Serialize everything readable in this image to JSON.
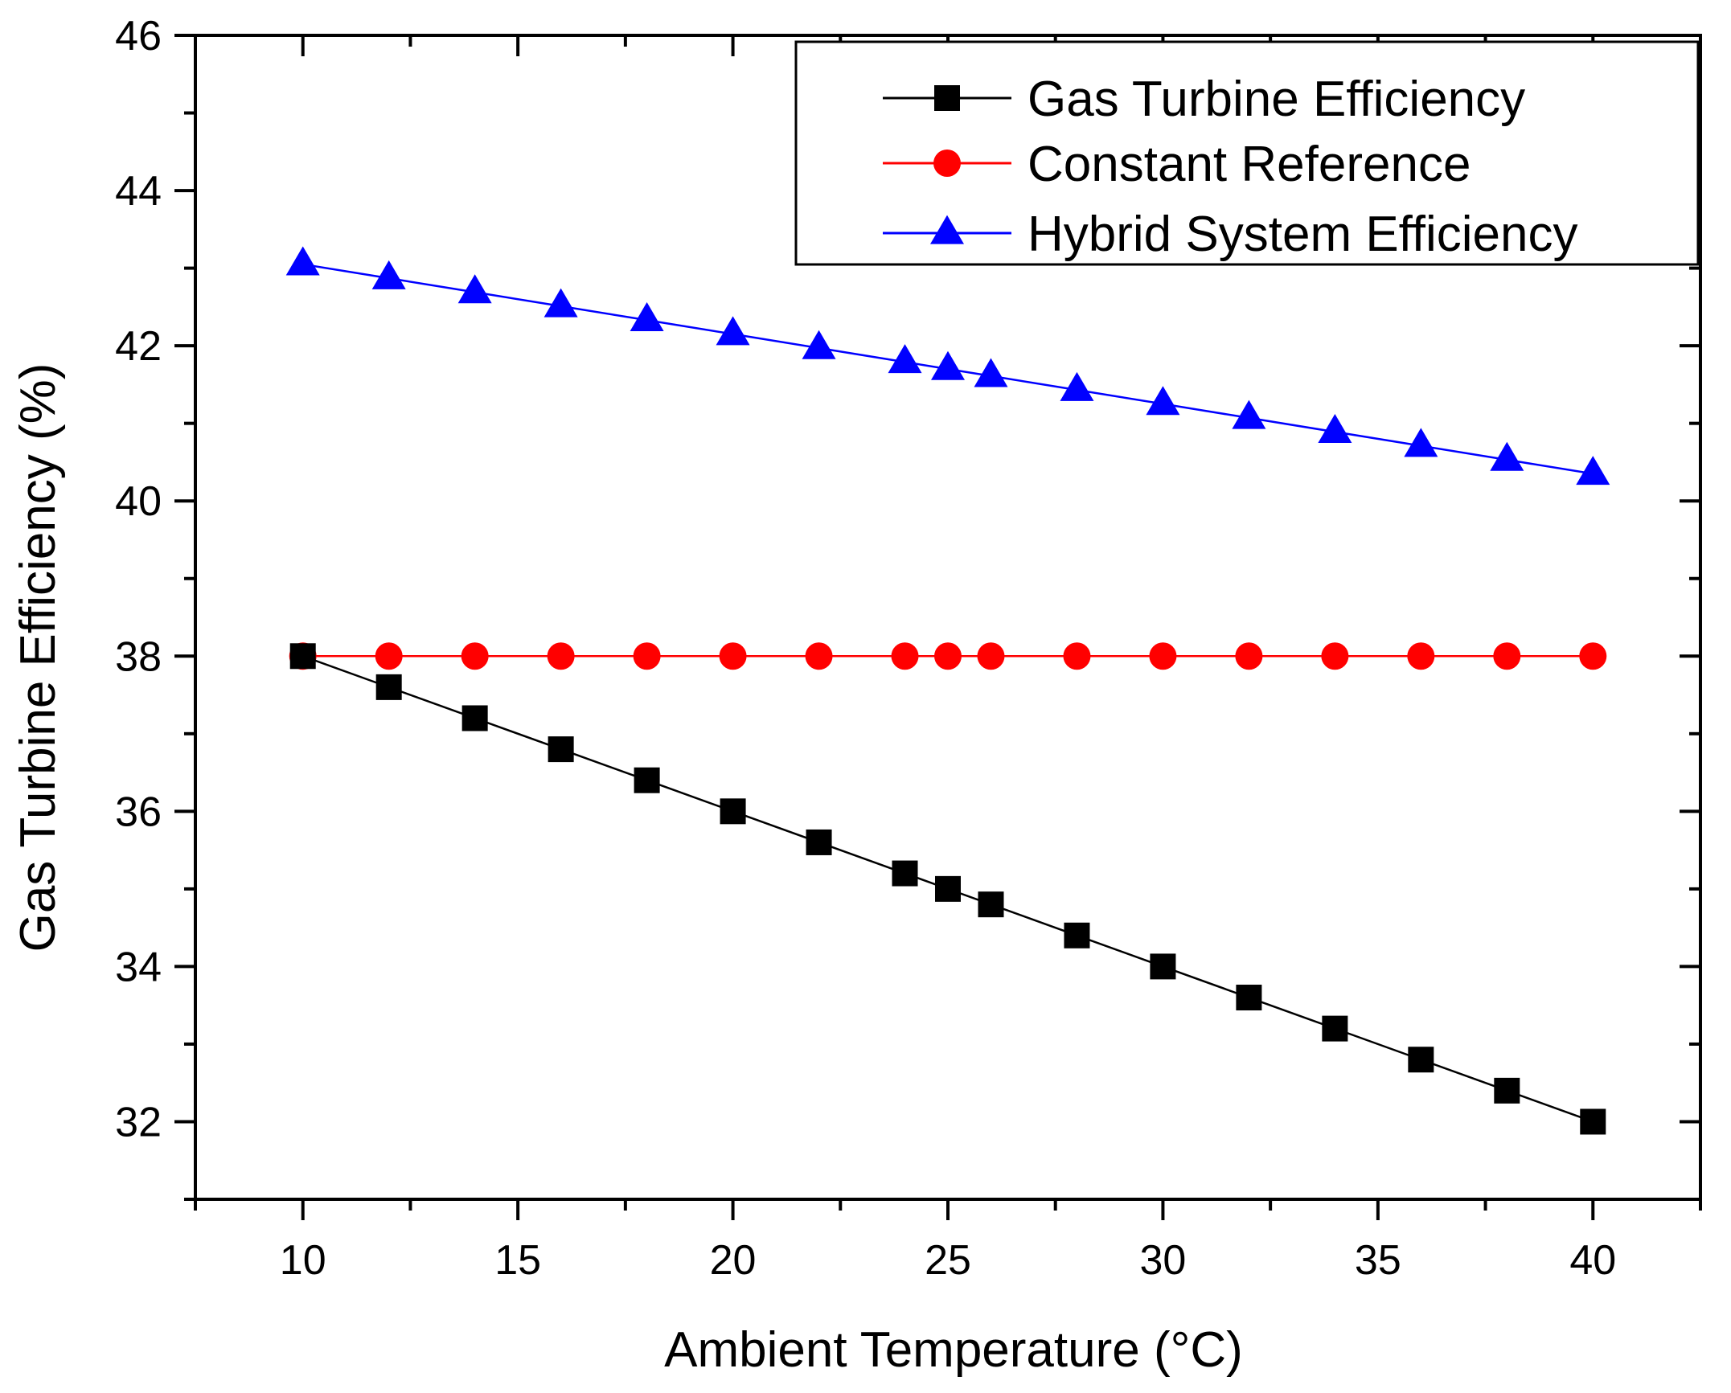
{
  "chart_data": {
    "type": "line",
    "title": "",
    "xlabel": "Ambient Temperature (°C)",
    "ylabel": "Gas Turbine Efficiency (%)",
    "xlim": [
      7.5,
      42.5
    ],
    "ylim": [
      31,
      46
    ],
    "x_ticks": [
      10,
      15,
      20,
      25,
      30,
      35,
      40
    ],
    "x_tick_labels": [
      "10",
      "15",
      "20",
      "25",
      "30",
      "35",
      "40"
    ],
    "y_ticks": [
      32,
      34,
      36,
      38,
      40,
      42,
      44,
      46
    ],
    "y_tick_labels": [
      "32",
      "34",
      "36",
      "38",
      "40",
      "42",
      "44",
      "46"
    ],
    "grid": false,
    "legend_position": "top-right",
    "x": [
      10,
      12,
      14,
      16,
      18,
      20,
      22,
      24,
      25,
      26,
      28,
      30,
      32,
      34,
      36,
      38,
      40
    ],
    "series": [
      {
        "name": "Gas Turbine Efficiency",
        "color": "#000000",
        "marker": "square",
        "values": [
          38.0,
          37.6,
          37.2,
          36.8,
          36.4,
          36.0,
          35.6,
          35.2,
          35.0,
          34.8,
          34.4,
          34.0,
          33.6,
          33.2,
          32.8,
          32.4,
          32.0
        ]
      },
      {
        "name": "Constant Reference",
        "color": "#ff0000",
        "marker": "circle",
        "values": [
          38,
          38,
          38,
          38,
          38,
          38,
          38,
          38,
          38,
          38,
          38,
          38,
          38,
          38,
          38,
          38,
          38
        ]
      },
      {
        "name": "Hybrid System Efficiency",
        "color": "#0000ff",
        "marker": "triangle",
        "values": [
          43.05,
          42.87,
          42.69,
          42.51,
          42.33,
          42.15,
          41.97,
          41.79,
          41.7,
          41.61,
          41.43,
          41.25,
          41.07,
          40.89,
          40.71,
          40.53,
          40.35
        ]
      }
    ]
  }
}
